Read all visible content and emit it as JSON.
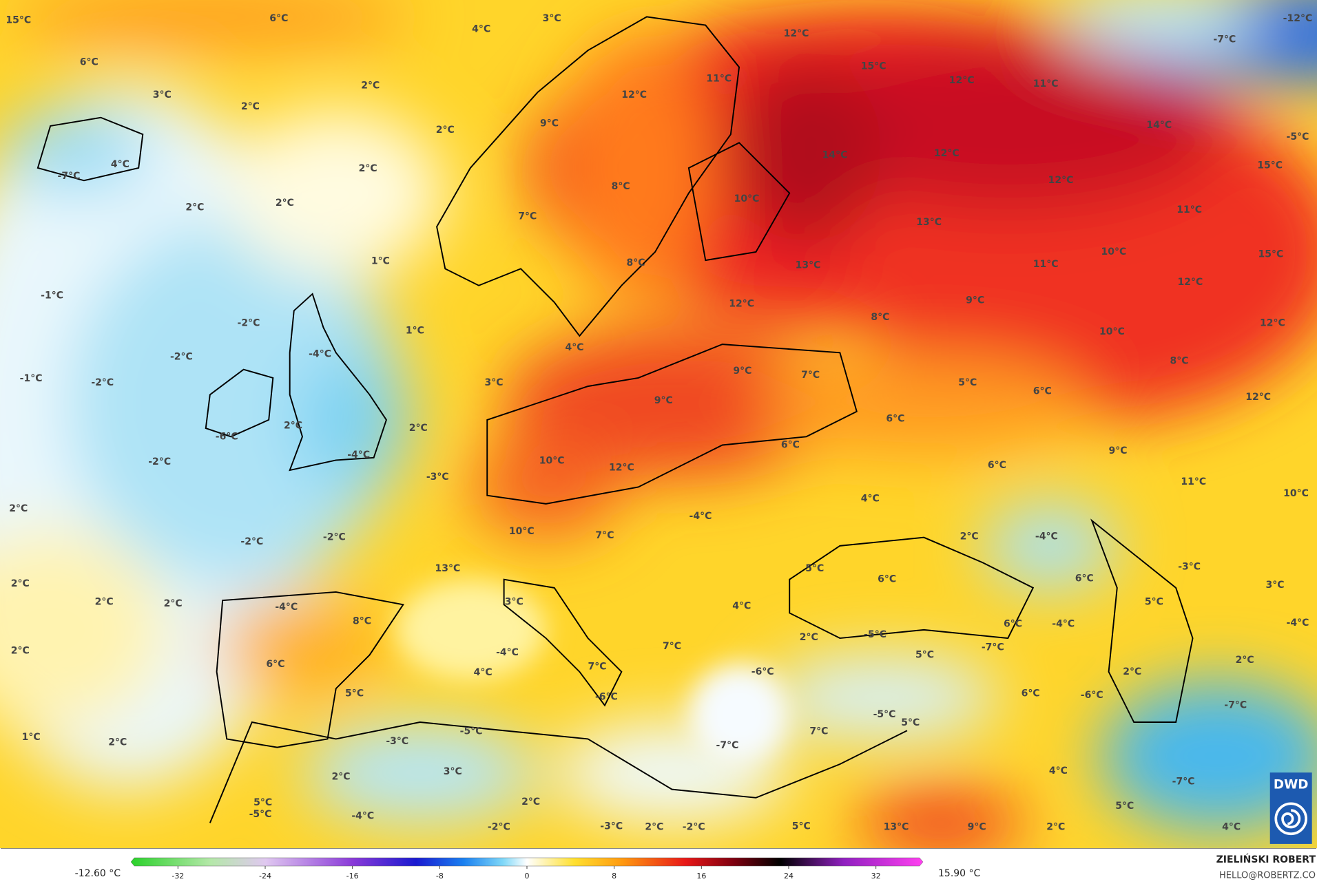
{
  "map": {
    "labels": [
      "15°C",
      "6°C",
      "4°C",
      "3°C",
      "12°C",
      "15°C",
      "12°C",
      "11°C",
      "-7°C",
      "-12°C",
      "6°C",
      "3°C",
      "2°C",
      "2°C",
      "11°C",
      "12°C",
      "2°C",
      "9°C",
      "14°C",
      "-5°C",
      "4°C",
      "-7°C",
      "2°C",
      "14°C",
      "12°C",
      "15°C",
      "8°C",
      "12°C",
      "2°C",
      "2°C",
      "10°C",
      "7°C",
      "13°C",
      "11°C",
      "1°C",
      "8°C",
      "13°C",
      "10°C",
      "11°C",
      "15°C",
      "-1°C",
      "12°C",
      "9°C",
      "12°C",
      "-2°C",
      "1°C",
      "8°C",
      "10°C",
      "12°C",
      "-2°C",
      "-4°C",
      "4°C",
      "-1°C",
      "-2°C",
      "3°C",
      "9°C",
      "7°C",
      "5°C",
      "6°C",
      "8°C",
      "12°C",
      "2°C",
      "2°C",
      "9°C",
      "6°C",
      "-6°C",
      "-4°C",
      "6°C",
      "9°C",
      "-2°C",
      "10°C",
      "12°C",
      "6°C",
      "11°C",
      "10°C",
      "-3°C",
      "4°C",
      "2°C",
      "-4°C",
      "-2°C",
      "-2°C",
      "10°C",
      "7°C",
      "2°C",
      "-4°C",
      "5°C",
      "6°C",
      "-3°C",
      "13°C",
      "6°C",
      "2°C",
      "2°C",
      "2°C",
      "3°C",
      "4°C",
      "3°C",
      "5°C",
      "-4°C",
      "8°C",
      "2°C",
      "-5°C",
      "6°C",
      "-4°C",
      "-4°C",
      "2°C",
      "7°C",
      "-4°C",
      "5°C",
      "-7°C",
      "6°C",
      "4°C",
      "7°C",
      "-6°C",
      "2°C",
      "2°C",
      "5°C",
      "-6°C",
      "6°C",
      "-6°C",
      "-7°C",
      "-5°C",
      "5°C",
      "-5°C",
      "7°C",
      "1°C",
      "2°C",
      "-3°C",
      "-7°C",
      "3°C",
      "2°C",
      "4°C",
      "-7°C",
      "5°C",
      "-5°C",
      "-4°C",
      "2°C",
      "5°C",
      "-2°C",
      "-3°C",
      "2°C",
      "-2°C",
      "5°C",
      "13°C",
      "9°C",
      "2°C",
      "4°C"
    ],
    "logo": "DWD"
  },
  "colorbar": {
    "min_label": "-12.60 °C",
    "max_label": "15.90 °C",
    "range": [
      -36,
      36
    ],
    "ticks": [
      -32,
      -24,
      -16,
      -8,
      0,
      8,
      16,
      24,
      32
    ]
  },
  "credit": {
    "name": "ZIELIŃSKI ROBERT",
    "contact": "HELLO@ROBERTZ.CO"
  }
}
